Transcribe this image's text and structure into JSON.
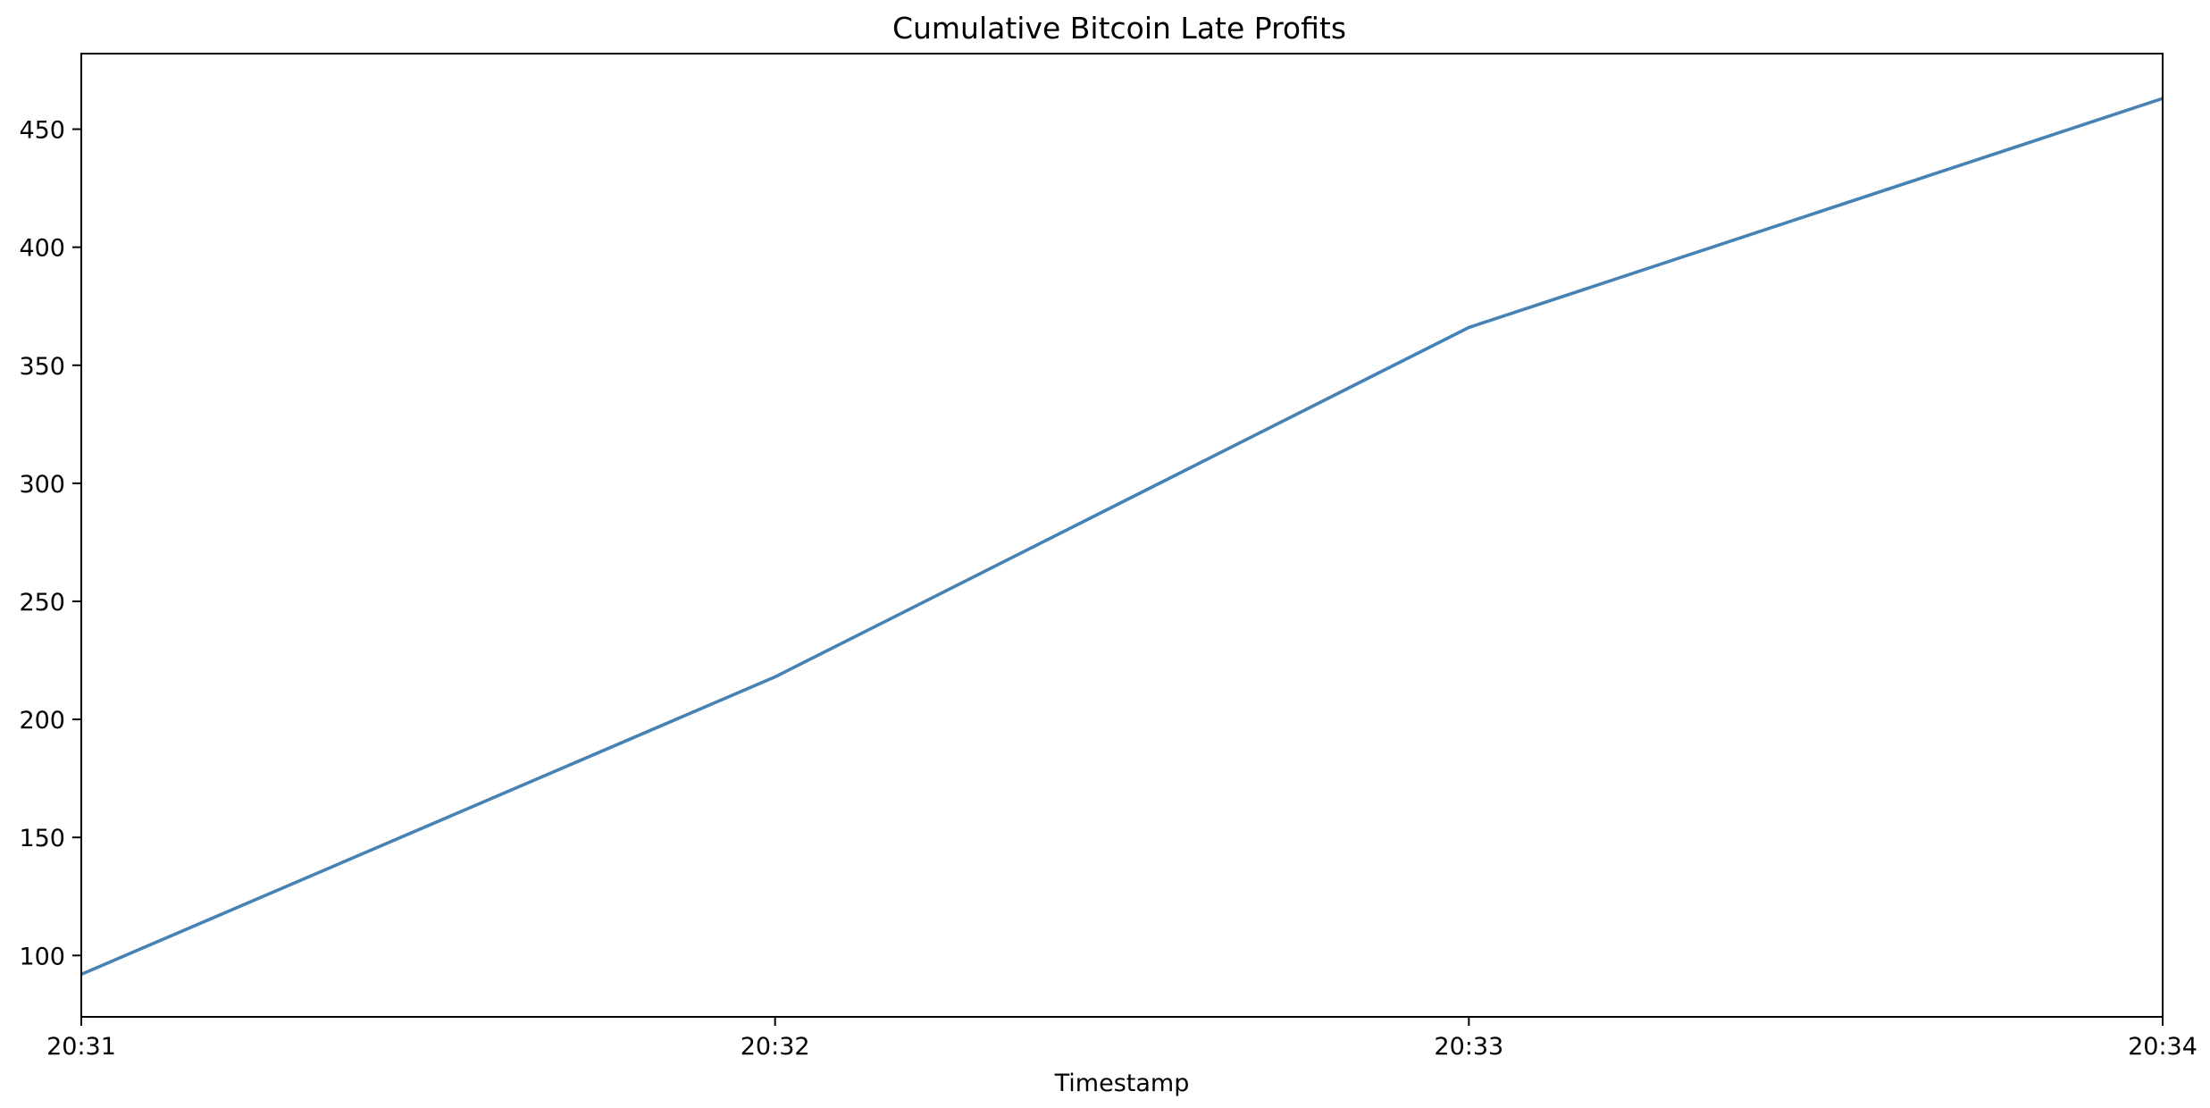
{
  "chart_data": {
    "type": "line",
    "title": "Cumulative Bitcoin Late Profits",
    "xlabel": "Timestamp",
    "ylabel": "",
    "x": [
      "20:31",
      "20:32",
      "20:33",
      "20:34"
    ],
    "series": [
      {
        "values": [
          92,
          218,
          366,
          463
        ],
        "color": "#4682b4"
      }
    ],
    "x_ticks": [
      "20:31",
      "20:32",
      "20:33",
      "20:34"
    ],
    "y_ticks": [
      100,
      150,
      200,
      250,
      300,
      350,
      400,
      450
    ],
    "ylim": [
      74,
      482
    ],
    "grid": false,
    "legend": "none"
  }
}
